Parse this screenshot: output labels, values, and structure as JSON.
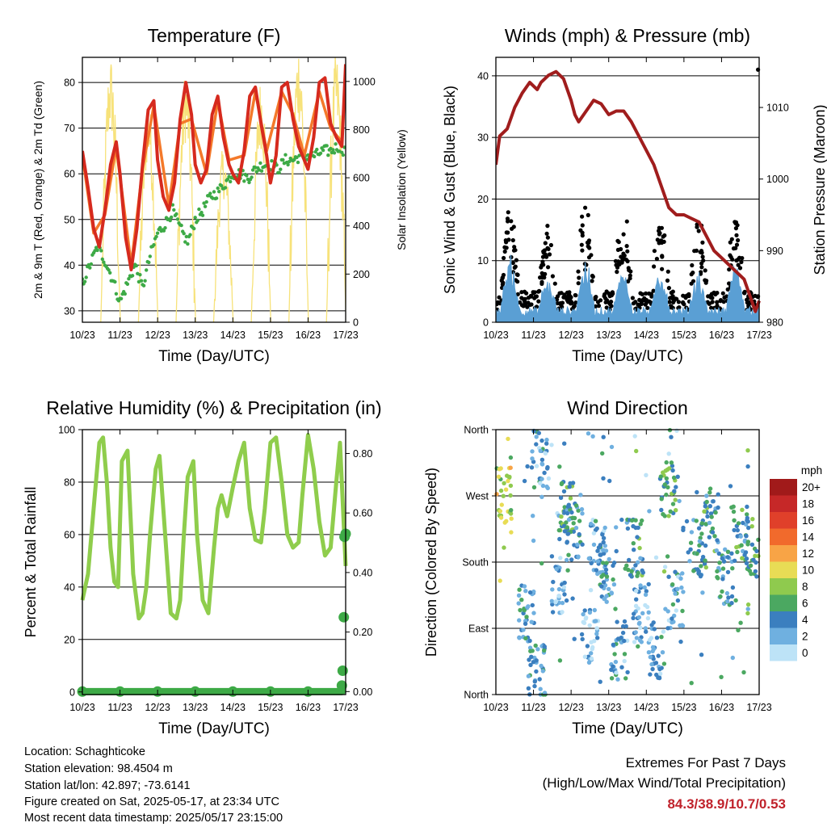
{
  "x_ticks": [
    "10/23",
    "11/23",
    "12/23",
    "13/23",
    "14/23",
    "15/23",
    "16/23",
    "17/23"
  ],
  "xlabel": "Time (Day/UTC)",
  "colors": {
    "t2m": "#d62a1e",
    "t9m": "#f4792a",
    "td": "#3daa46",
    "solar": "#f7e27a",
    "wind": "#5a9fd4",
    "gust": "#000000",
    "pressure": "#a01d1d",
    "rh": "#8fcd4c",
    "precip": "#3daa46"
  },
  "chart_data": [
    {
      "id": "temperature",
      "type": "line",
      "title": "Temperature (F)",
      "xlabel": "Time (Day/UTC)",
      "ylabel": "2m & 9m T (Red, Orange) & 2m Td (Green)",
      "ylabel_right": "Solar Insolation (Yellow)",
      "ylim": [
        27.5,
        85.5
      ],
      "yticks": [
        30,
        40,
        50,
        60,
        70,
        80
      ],
      "ylim_right": [
        0,
        1100
      ],
      "yticks_right": [
        0,
        200,
        400,
        600,
        800,
        1000
      ],
      "grid": true,
      "series": [
        {
          "key": "t2m",
          "axis": "left",
          "x": [
            0,
            0.15,
            0.3,
            0.45,
            0.6,
            0.75,
            0.9,
            1.0,
            1.15,
            1.3,
            1.45,
            1.6,
            1.75,
            1.9,
            2.0,
            2.15,
            2.3,
            2.45,
            2.6,
            2.75,
            2.9,
            3.0,
            3.15,
            3.3,
            3.45,
            3.6,
            3.75,
            3.9,
            4.0,
            4.15,
            4.3,
            4.45,
            4.6,
            4.75,
            4.9,
            5.0,
            5.15,
            5.3,
            5.45,
            5.6,
            5.75,
            5.9,
            6.0,
            6.15,
            6.3,
            6.45,
            6.6,
            6.75,
            6.9,
            7.0
          ],
          "y": [
            65,
            57,
            48,
            44,
            52,
            62,
            67,
            60,
            46,
            39,
            48,
            62,
            74,
            76,
            63,
            55,
            52,
            58,
            72,
            80,
            73,
            62,
            58,
            61,
            73,
            77,
            68,
            62,
            60,
            58,
            65,
            77,
            79,
            71,
            64,
            58,
            64,
            79,
            80,
            72,
            66,
            63,
            61,
            68,
            80,
            81,
            71,
            68,
            66,
            84
          ]
        },
        {
          "key": "t9m",
          "axis": "left",
          "x": [
            0,
            0.3,
            0.6,
            0.9,
            1.3,
            1.6,
            1.9,
            2.3,
            2.6,
            2.9,
            3.3,
            3.6,
            3.9,
            4.3,
            4.6,
            4.9,
            5.3,
            5.6,
            5.9,
            6.3,
            6.6,
            6.9,
            7.0
          ],
          "y": [
            64,
            47,
            51,
            66,
            40,
            61,
            75,
            53,
            71,
            72,
            60,
            76,
            63,
            64,
            78,
            65,
            78,
            73,
            64,
            78,
            70,
            67,
            82
          ]
        },
        {
          "key": "td",
          "axis": "left",
          "x": [
            0,
            0.2,
            0.4,
            0.6,
            0.8,
            1.0,
            1.2,
            1.4,
            1.6,
            1.8,
            2.0,
            2.2,
            2.4,
            2.6,
            2.8,
            3.0,
            3.2,
            3.4,
            3.6,
            3.8,
            4.0,
            4.2,
            4.4,
            4.6,
            4.8,
            5.0,
            5.2,
            5.4,
            5.6,
            5.8,
            6.0,
            6.2,
            6.4,
            6.6,
            6.8,
            7.0
          ],
          "y": [
            36,
            40,
            44,
            41,
            37,
            32,
            36,
            40,
            35,
            42,
            47,
            49,
            52,
            48,
            45,
            50,
            52,
            55,
            56,
            58,
            60,
            60,
            59,
            61,
            62,
            62,
            61,
            63,
            63,
            64,
            64,
            64,
            65,
            65,
            66,
            65
          ]
        },
        {
          "key": "solar",
          "axis": "right",
          "type": "daily_peaks",
          "day_offsets": [
            0.75,
            1.75,
            2.75,
            3.75,
            4.75,
            5.75,
            6.75
          ],
          "peaks": [
            950,
            800,
            900,
            620,
            870,
            1000,
            950
          ]
        }
      ]
    },
    {
      "id": "winds",
      "type": "line",
      "title": "Winds (mph) & Pressure (mb)",
      "xlabel": "Time (Day/UTC)",
      "ylabel": "Sonic Wind & Gust (Blue, Black)",
      "ylabel_right": "Station Pressure (Maroon)",
      "ylim": [
        0,
        43
      ],
      "yticks": [
        0,
        10,
        20,
        30,
        40
      ],
      "ylim_right": [
        980,
        1017
      ],
      "yticks_right": [
        980,
        990,
        1000,
        1010
      ],
      "grid": true,
      "series": [
        {
          "key": "pressure",
          "axis": "right",
          "x": [
            0,
            0.1,
            0.3,
            0.5,
            0.7,
            0.9,
            1.1,
            1.2,
            1.4,
            1.6,
            1.8,
            2.0,
            2.1,
            2.2,
            2.4,
            2.6,
            2.8,
            3.0,
            3.2,
            3.4,
            3.6,
            3.8,
            4.0,
            4.2,
            4.4,
            4.6,
            4.8,
            5.0,
            5.2,
            5.4,
            5.6,
            5.8,
            6.0,
            6.2,
            6.4,
            6.6,
            6.8,
            6.9,
            7.0
          ],
          "y": [
            1002,
            1006,
            1007,
            1010,
            1012,
            1013.5,
            1012.5,
            1013.5,
            1014.5,
            1015,
            1014,
            1011,
            1009,
            1008,
            1009.5,
            1011,
            1010.5,
            1009,
            1009.5,
            1009.5,
            1008,
            1006,
            1004,
            1002,
            999,
            996,
            995,
            995,
            994.5,
            994,
            992,
            990,
            989,
            988,
            987,
            986,
            983,
            981.5,
            983
          ]
        },
        {
          "key": "gust",
          "axis": "left",
          "type": "scatter_envelope",
          "day_peaks": [
            15,
            12,
            16,
            15,
            13,
            13,
            14,
            25
          ],
          "peak_max": 41
        },
        {
          "key": "wind",
          "axis": "left",
          "type": "area_envelope",
          "day_peaks": [
            9,
            5,
            8,
            7,
            6,
            6,
            8,
            10
          ]
        }
      ]
    },
    {
      "id": "humidity",
      "type": "line",
      "title": "Relative Humidity (%) & Precipitation (in)",
      "xlabel": "Time (Day/UTC)",
      "ylabel": "Percent & Total Rainfall",
      "ylim": [
        -1,
        100
      ],
      "yticks": [
        0,
        20,
        40,
        60,
        80,
        100
      ],
      "ylim_right": [
        -0.01,
        0.88
      ],
      "yticks_right": [
        "0.00",
        "0.20",
        "0.40",
        "0.60",
        "0.80"
      ],
      "grid": true,
      "series": [
        {
          "key": "rh",
          "axis": "left",
          "x": [
            0,
            0.15,
            0.3,
            0.45,
            0.55,
            0.65,
            0.75,
            0.85,
            0.95,
            1.05,
            1.2,
            1.35,
            1.5,
            1.6,
            1.7,
            1.8,
            1.95,
            2.05,
            2.2,
            2.35,
            2.5,
            2.6,
            2.7,
            2.8,
            2.95,
            3.05,
            3.2,
            3.35,
            3.5,
            3.6,
            3.7,
            3.85,
            4.0,
            4.15,
            4.3,
            4.45,
            4.6,
            4.75,
            4.85,
            5.0,
            5.15,
            5.3,
            5.45,
            5.6,
            5.75,
            5.85,
            6.0,
            6.15,
            6.3,
            6.45,
            6.6,
            6.75,
            6.85,
            7.0
          ],
          "y": [
            35,
            45,
            70,
            95,
            97,
            80,
            55,
            42,
            40,
            88,
            92,
            45,
            28,
            30,
            40,
            60,
            85,
            90,
            60,
            30,
            28,
            35,
            60,
            82,
            88,
            60,
            35,
            30,
            55,
            70,
            75,
            67,
            78,
            88,
            95,
            70,
            58,
            57,
            70,
            95,
            97,
            80,
            60,
            55,
            57,
            75,
            98,
            85,
            65,
            52,
            55,
            80,
            95,
            48
          ]
        },
        {
          "key": "precip",
          "axis": "right",
          "type": "scatter",
          "x": [
            0,
            1,
            2,
            3,
            4,
            5,
            6,
            6.9,
            6.92,
            6.95,
            6.97,
            7.0
          ],
          "y": [
            0,
            0,
            0,
            0,
            0,
            0,
            0,
            0.02,
            0.07,
            0.25,
            0.52,
            0.53
          ]
        }
      ]
    },
    {
      "id": "wind_direction",
      "type": "scatter",
      "title": "Wind Direction",
      "xlabel": "Time (Day/UTC)",
      "ylabel": "Direction (Colored By Speed)",
      "ylim": [
        0,
        360
      ],
      "yticks": [
        "North",
        "East",
        "South",
        "West",
        "North"
      ],
      "legend_title": "mph",
      "legend_position": "right",
      "legend_labels": [
        "20+",
        "18",
        "16",
        "14",
        "12",
        "10",
        "8",
        "6",
        "4",
        "2",
        "0"
      ],
      "legend_colors": [
        "#a11a1a",
        "#c62828",
        "#e0402a",
        "#f16a2c",
        "#f8a446",
        "#e8dc55",
        "#8fca4e",
        "#4ba861",
        "#3b7fbf",
        "#6fb0e0",
        "#bde3f7"
      ],
      "clusters": [
        {
          "day": 0.1,
          "dir": 270,
          "speed": 9
        },
        {
          "day": 0.7,
          "dir": 110,
          "speed": 3
        },
        {
          "day": 1.0,
          "dir": 30,
          "speed": 4
        },
        {
          "day": 1.1,
          "dir": 320,
          "speed": 3
        },
        {
          "day": 1.6,
          "dir": 150,
          "speed": 2
        },
        {
          "day": 1.8,
          "dir": 250,
          "speed": 6
        },
        {
          "day": 2.0,
          "dir": 220,
          "speed": 4
        },
        {
          "day": 2.4,
          "dir": 75,
          "speed": 2
        },
        {
          "day": 2.6,
          "dir": 200,
          "speed": 3
        },
        {
          "day": 2.9,
          "dir": 160,
          "speed": 4
        },
        {
          "day": 3.2,
          "dir": 60,
          "speed": 3
        },
        {
          "day": 3.6,
          "dir": 200,
          "speed": 5
        },
        {
          "day": 3.8,
          "dir": 110,
          "speed": 2
        },
        {
          "day": 4.2,
          "dir": 60,
          "speed": 3
        },
        {
          "day": 4.5,
          "dir": 280,
          "speed": 6
        },
        {
          "day": 4.7,
          "dir": 130,
          "speed": 3
        },
        {
          "day": 5.2,
          "dir": 200,
          "speed": 4
        },
        {
          "day": 5.6,
          "dir": 240,
          "speed": 5
        },
        {
          "day": 6.0,
          "dir": 160,
          "speed": 4
        },
        {
          "day": 6.4,
          "dir": 220,
          "speed": 5
        },
        {
          "day": 6.8,
          "dir": 200,
          "speed": 6
        }
      ]
    }
  ],
  "footer": {
    "location": "Location: Schaghticoke",
    "elevation": "Station elevation: 98.4504 m",
    "latlon": "Station lat/lon: 42.897; -73.6141",
    "created": "Figure created on Sat, 2025-05-17, at 23:34 UTC",
    "recent": "Most recent data timestamp: 2025/05/17 23:15:00"
  },
  "extremes": {
    "title": "Extremes For Past 7 Days",
    "subtitle": "(High/Low/Max Wind/Total Precipitation)",
    "values": "84.3/38.9/10.7/0.53"
  }
}
